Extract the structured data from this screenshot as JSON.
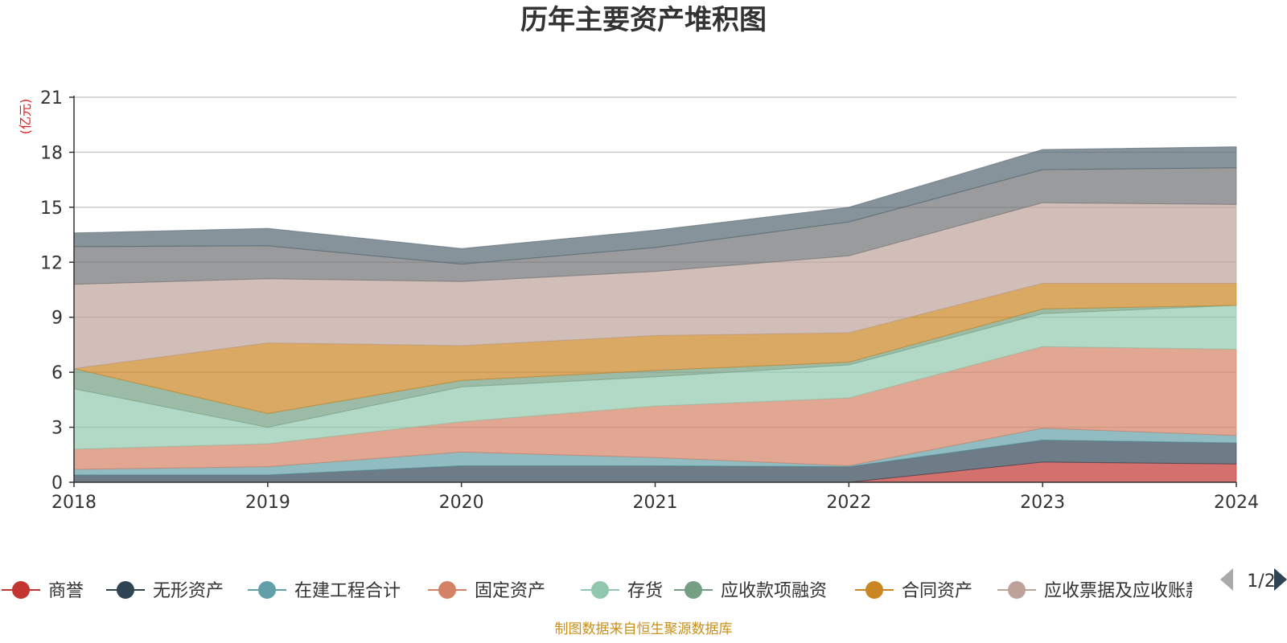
{
  "chart_data": {
    "type": "area",
    "stacked": true,
    "title": "历年主要资产堆积图",
    "unit": "(亿元)",
    "x": [
      "2018",
      "2019",
      "2020",
      "2021",
      "2022",
      "2023",
      "2024"
    ],
    "ylim": [
      0,
      21
    ],
    "yticks": [
      0,
      3,
      6,
      9,
      12,
      15,
      18,
      21
    ],
    "grid": true,
    "series": [
      {
        "name": "商誉",
        "color": "#c23531",
        "values": [
          0,
          0,
          0,
          0,
          0,
          1.1,
          1.0
        ]
      },
      {
        "name": "无形资产",
        "color": "#2f4554",
        "values": [
          0.4,
          0.4,
          0.9,
          0.9,
          0.85,
          1.2,
          1.15
        ]
      },
      {
        "name": "在建工程合计",
        "color": "#61a0a8",
        "values": [
          0.3,
          0.45,
          0.75,
          0.45,
          0.05,
          0.65,
          0.4
        ]
      },
      {
        "name": "固定资产",
        "color": "#d48265",
        "values": [
          1.1,
          1.25,
          1.65,
          2.8,
          3.7,
          4.45,
          4.7
        ]
      },
      {
        "name": "存货",
        "color": "#91c7ae",
        "values": [
          3.3,
          0.9,
          1.9,
          1.6,
          1.8,
          1.8,
          2.4
        ]
      },
      {
        "name": "应收款项融资",
        "color": "#749f83",
        "values": [
          1.1,
          0.75,
          0.35,
          0.35,
          0.15,
          0.25,
          0
        ]
      },
      {
        "name": "合同资产",
        "color": "#ca8622",
        "values": [
          0,
          3.85,
          1.9,
          1.9,
          1.6,
          1.4,
          1.2
        ]
      },
      {
        "name": "应收票据及应收账款",
        "color": "#bda29a",
        "values": [
          4.6,
          3.5,
          3.5,
          3.5,
          4.2,
          4.4,
          4.3
        ]
      },
      {
        "name": "",
        "color": "#6e7074",
        "values": [
          2.05,
          1.8,
          0.95,
          1.3,
          1.85,
          1.8,
          2.0
        ]
      },
      {
        "name": "",
        "color": "#546570",
        "values": [
          0.75,
          0.95,
          0.85,
          0.95,
          0.8,
          1.1,
          1.15
        ]
      }
    ],
    "legend": {
      "position": "bottom",
      "page": "1/2"
    }
  },
  "footer": {
    "source": "制图数据来自恒生聚源数据库"
  }
}
